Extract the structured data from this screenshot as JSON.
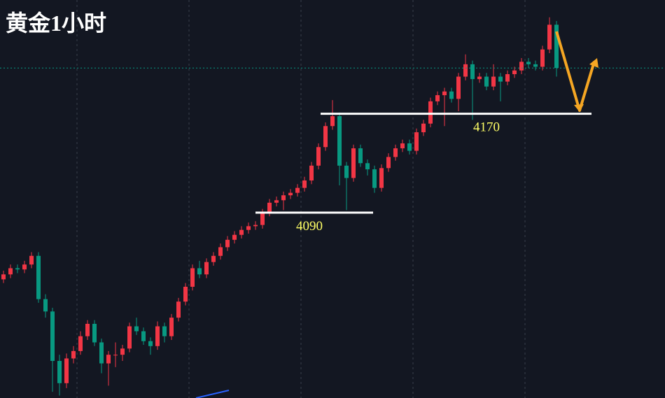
{
  "chart_data": {
    "type": "candlestick",
    "title": "黄金1小时",
    "open": [
      4036,
      4040,
      4045,
      4044,
      4048,
      4055,
      4020,
      4010,
      3970,
      3952,
      3972,
      3978,
      3990,
      4000,
      3985,
      3968,
      3975,
      3975,
      3980,
      3998,
      3994,
      3986,
      3982,
      3998,
      3990,
      4005,
      4018,
      4030,
      4045,
      4040,
      4050,
      4055,
      4062,
      4068,
      4072,
      4076,
      4079,
      4080,
      4090,
      4098,
      4100,
      4104,
      4106,
      4110,
      4116,
      4128,
      4143,
      4160,
      4168,
      4128,
      4118,
      4142,
      4130,
      4125,
      4110,
      4126,
      4135,
      4142,
      4146,
      4140,
      4155,
      4162,
      4180,
      4185,
      4188,
      4182,
      4200,
      4210,
      4198,
      4200,
      4192,
      4200,
      4196,
      4202,
      4205,
      4212,
      4210,
      4208,
      4222,
      4242
    ],
    "high": [
      4043,
      4048,
      4048,
      4051,
      4058,
      4058,
      4024,
      4013,
      3975,
      3976,
      3982,
      3994,
      4003,
      4003,
      3988,
      3978,
      3985,
      3983,
      4001,
      4005,
      3997,
      3989,
      4002,
      4001,
      4008,
      4021,
      4033,
      4048,
      4051,
      4053,
      4058,
      4065,
      4071,
      4075,
      4079,
      4082,
      4083,
      4093,
      4101,
      4103,
      4107,
      4109,
      4113,
      4119,
      4131,
      4146,
      4163,
      4181,
      4171,
      4131,
      4145,
      4145,
      4133,
      4128,
      4129,
      4138,
      4145,
      4149,
      4149,
      4158,
      4165,
      4183,
      4188,
      4191,
      4191,
      4203,
      4218,
      4213,
      4203,
      4203,
      4210,
      4203,
      4205,
      4208,
      4215,
      4215,
      4213,
      4225,
      4248,
      4245
    ],
    "low": [
      4033,
      4037,
      4041,
      4041,
      4045,
      4017,
      4005,
      3945,
      3942,
      3948,
      3968,
      3975,
      3987,
      3982,
      3960,
      3950,
      3965,
      3970,
      3977,
      3991,
      3983,
      3975,
      3979,
      3985,
      3987,
      4002,
      4015,
      4027,
      4037,
      4037,
      4047,
      4052,
      4059,
      4065,
      4069,
      4073,
      4076,
      4077,
      4087,
      4095,
      4092,
      4101,
      4103,
      4107,
      4113,
      4125,
      4140,
      4157,
      4112,
      4092,
      4115,
      4127,
      4120,
      4106,
      4107,
      4123,
      4132,
      4139,
      4137,
      4137,
      4152,
      4159,
      4177,
      4160,
      4179,
      4172,
      4197,
      4165,
      4195,
      4189,
      4189,
      4180,
      4193,
      4199,
      4202,
      4207,
      4205,
      4205,
      4219,
      4200
    ],
    "close": [
      4040,
      4045,
      4044,
      4048,
      4055,
      4020,
      4010,
      3970,
      3952,
      3972,
      3978,
      3990,
      4000,
      3985,
      3968,
      3975,
      3975,
      3980,
      3998,
      3994,
      3986,
      3982,
      3998,
      3990,
      4005,
      4018,
      4030,
      4045,
      4040,
      4050,
      4055,
      4062,
      4068,
      4072,
      4076,
      4079,
      4080,
      4090,
      4098,
      4100,
      4104,
      4106,
      4110,
      4116,
      4128,
      4143,
      4160,
      4168,
      4128,
      4118,
      4142,
      4130,
      4125,
      4110,
      4126,
      4135,
      4142,
      4146,
      4140,
      4155,
      4162,
      4180,
      4185,
      4188,
      4182,
      4200,
      4210,
      4198,
      4200,
      4192,
      4200,
      4196,
      4202,
      4205,
      4212,
      4210,
      4208,
      4222,
      4242,
      4207
    ],
    "up_color": "#f23645",
    "down_color": "#089981",
    "ylim": [
      3940,
      4262
    ],
    "levels": [
      4090,
      4170
    ],
    "level_color": "#ffffff",
    "level_label_color": "#ffff66"
  }
}
